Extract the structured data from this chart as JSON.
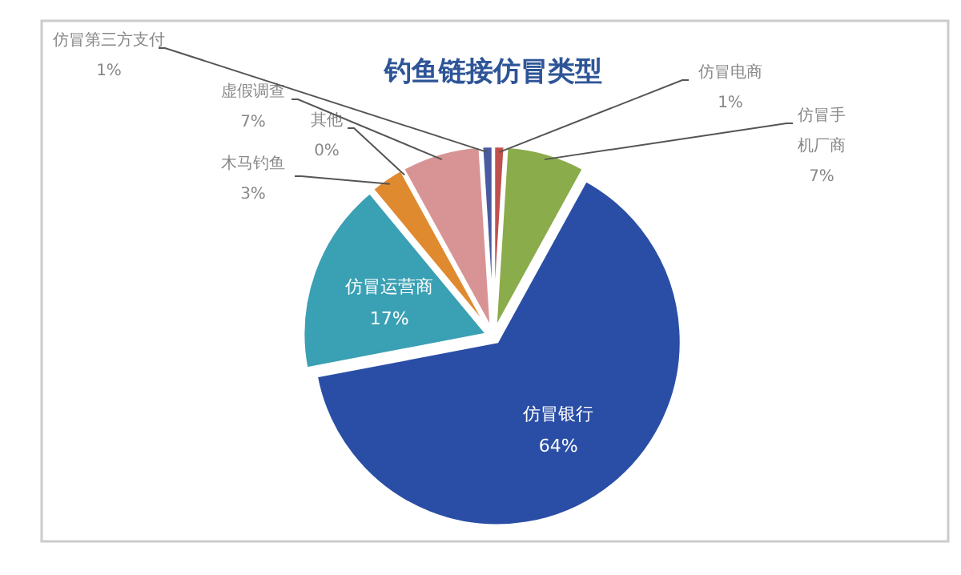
{
  "chart_data": {
    "type": "pie",
    "title": "钓鱼链接仿冒类型",
    "categories": [
      "仿冒电商",
      "仿冒手机厂商",
      "仿冒银行",
      "仿冒运营商",
      "木马钓鱼",
      "其他",
      "虚假调查",
      "仿冒第三方支付"
    ],
    "values": [
      1,
      7,
      64,
      17,
      3,
      0,
      7,
      1
    ],
    "colors": [
      "#c0504d",
      "#8aac4a",
      "#2a4ea6",
      "#3aa0b3",
      "#e08a30",
      "#8a8a8a",
      "#d89494",
      "#4a5aa0"
    ],
    "value_labels": [
      "1%",
      "7%",
      "64%",
      "17%",
      "3%",
      "0%",
      "7%",
      "1%"
    ]
  }
}
